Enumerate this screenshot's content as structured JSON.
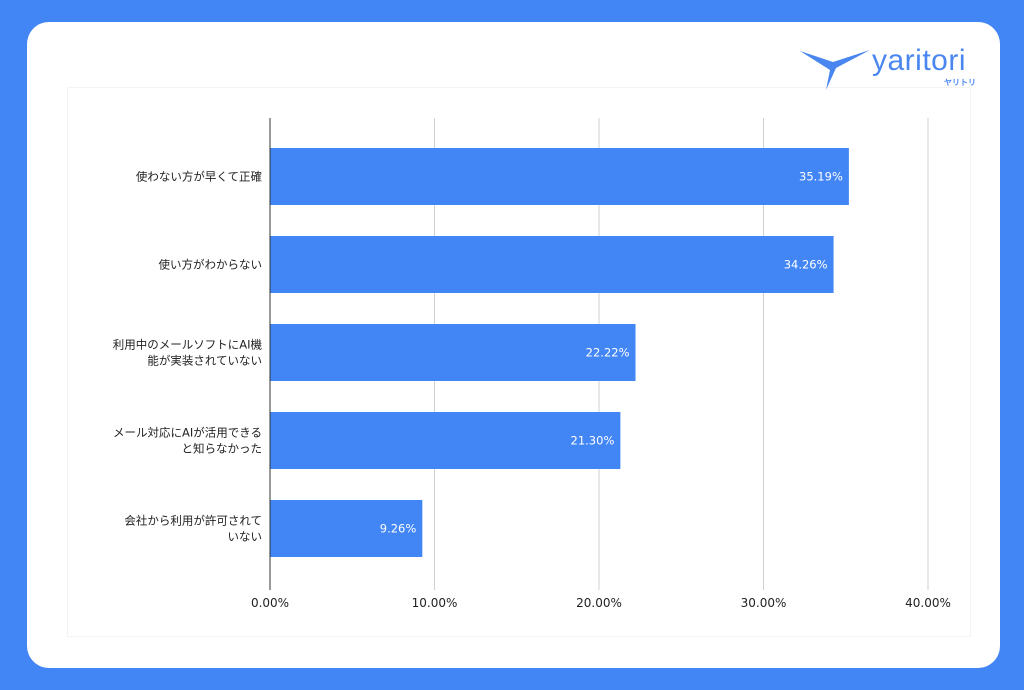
{
  "brand": {
    "name": "yaritori",
    "kana": "ヤリトリ",
    "color": "#4a86f0"
  },
  "chart_data": {
    "type": "bar",
    "orientation": "horizontal",
    "categories": [
      [
        "使わない方が早くて正確"
      ],
      [
        "使い方がわからない"
      ],
      [
        "利用中のメールソフトにAI機",
        "能が実装されていない"
      ],
      [
        "メール対応にAIが活用できる",
        "と知らなかった"
      ],
      [
        "会社から利用が許可されて",
        "いない"
      ]
    ],
    "values": [
      35.19,
      34.26,
      22.22,
      21.3,
      9.26
    ],
    "data_labels": [
      "35.19%",
      "34.26%",
      "22.22%",
      "21.30%",
      "9.26%"
    ],
    "xlim": [
      0,
      40
    ],
    "x_ticks": [
      0,
      10,
      20,
      30,
      40
    ],
    "x_tick_labels": [
      "0.00%",
      "10.00%",
      "20.00%",
      "30.00%",
      "40.00%"
    ],
    "grid": "vertical",
    "bar_color": "#4285f4",
    "title": "",
    "xlabel": "",
    "ylabel": ""
  }
}
